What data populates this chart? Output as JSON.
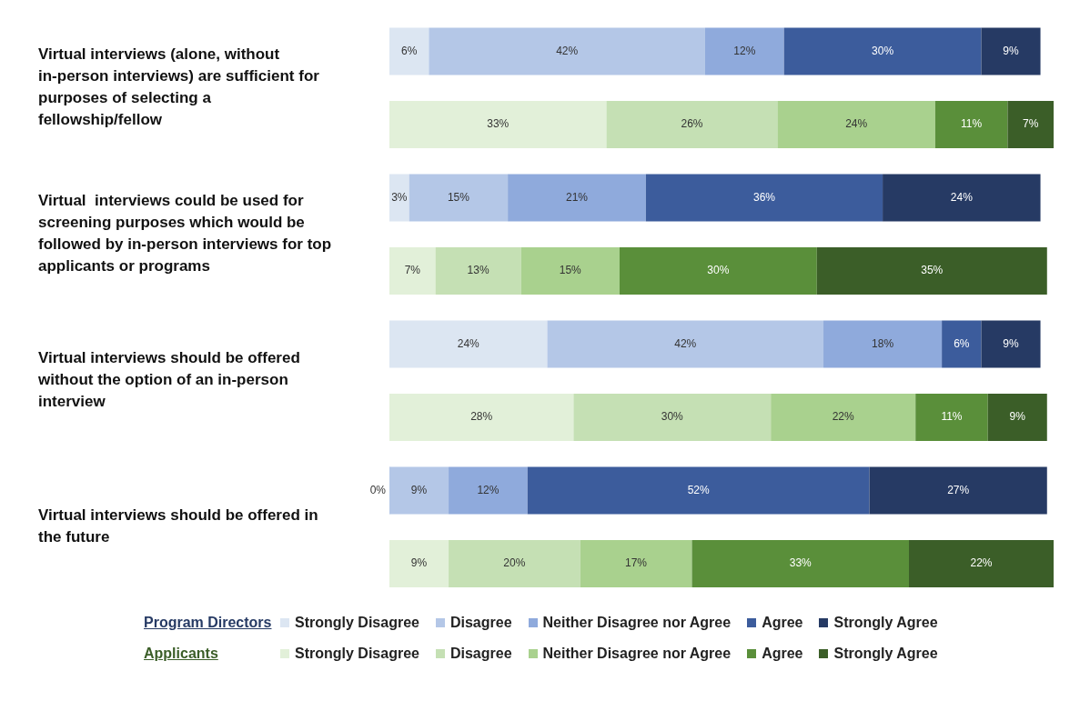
{
  "chart_data": {
    "type": "bar",
    "orientation": "horizontal",
    "stacked": true,
    "legend": "bottom",
    "categories": [
      "Virtual interviews (alone, without in-person interviews) are sufficient for purposes of selecting a fellowship/fellow",
      null,
      "Virtual  interviews could be used for screening purposes which would be followed by in-person interviews for top applicants or programs",
      null,
      "Virtual interviews should be offered without the option of an in-person interview",
      null,
      "Virtual interviews should be offered in the future",
      null
    ],
    "annotations": [
      "Program Directors",
      "Applicants"
    ],
    "series": [
      {
        "name": "Strongly Disagree",
        "color": "#dce6f2",
        "values": [
          6,
          null,
          3,
          null,
          24,
          null,
          0,
          null
        ],
        "value_labels": [
          "6%",
          null,
          "3%",
          null,
          "24%",
          null,
          "0%",
          null
        ]
      },
      {
        "name": "Disagree",
        "color": "#b4c7e7",
        "values": [
          42,
          null,
          15,
          null,
          42,
          null,
          9,
          null
        ],
        "value_labels": [
          "42%",
          null,
          "15%",
          null,
          "42%",
          null,
          "9%",
          null
        ]
      },
      {
        "name": "Neither Disagree nor Agree",
        "color": "#8faadc",
        "values": [
          12,
          null,
          21,
          null,
          18,
          null,
          12,
          null
        ],
        "value_labels": [
          "12%",
          null,
          "21%",
          null,
          "18%",
          null,
          "12%",
          null
        ]
      },
      {
        "name": "Agree",
        "color": "#3c5c9c",
        "values": [
          30,
          null,
          36,
          null,
          6,
          null,
          52,
          null
        ],
        "value_labels": [
          "30%",
          null,
          "36%",
          null,
          "6%",
          null,
          "52%",
          null
        ]
      },
      {
        "name": "Strongly Agree",
        "color": "#263a64",
        "values": [
          9,
          null,
          24,
          null,
          9,
          null,
          27,
          null
        ],
        "value_labels": [
          "9%",
          null,
          "24%",
          null,
          "9%",
          null,
          "27%",
          null
        ]
      },
      {
        "name": "Strongly Disagree",
        "color": "#e2f0d9",
        "values": [
          null,
          33,
          null,
          7,
          null,
          28,
          null,
          9
        ],
        "value_labels": [
          null,
          "33%",
          null,
          "7%",
          null,
          "28%",
          null,
          "9%"
        ]
      },
      {
        "name": "Disagree",
        "color": "#c5e0b4",
        "values": [
          null,
          26,
          null,
          13,
          null,
          30,
          null,
          20
        ],
        "value_labels": [
          null,
          "26%",
          null,
          "13%",
          null,
          "30%",
          null,
          "20%"
        ]
      },
      {
        "name": "Neither Disagree nor Agree",
        "color": "#a9d18e",
        "values": [
          null,
          24,
          null,
          15,
          null,
          22,
          null,
          17
        ],
        "value_labels": [
          null,
          "24%",
          null,
          "15%",
          null,
          "22%",
          null,
          "17%"
        ]
      },
      {
        "name": "Agree",
        "color": "#5a8f3a",
        "values": [
          null,
          11,
          null,
          30,
          null,
          11,
          null,
          33
        ],
        "value_labels": [
          null,
          "11%",
          null,
          "30%",
          null,
          "11%",
          null,
          "33%"
        ]
      },
      {
        "name": "Strongly Agree",
        "color": "#3b5e28",
        "values": [
          null,
          7,
          null,
          35,
          null,
          9,
          null,
          22
        ],
        "value_labels": [
          null,
          "7%",
          null,
          "35%",
          null,
          "9%",
          null,
          "22%"
        ]
      }
    ]
  }
}
